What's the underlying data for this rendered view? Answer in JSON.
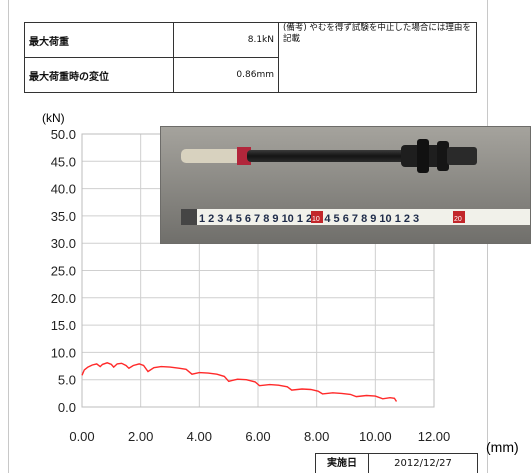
{
  "info": {
    "max_load_label": "最大荷重",
    "max_load_value": "8.1kN",
    "disp_label": "最大荷重時の変位",
    "disp_value": "0.86mm",
    "note": "(備考) やむを得ず試験を中止した場合には理由を記載"
  },
  "footer": {
    "date_label": "実施日",
    "date_value": "2012/12/27"
  },
  "photo": {
    "ruler_text": "1 2 3 4 5 6 7 8 9 10 1 2 3 4 5 6 7 8 9 10 1 2 3",
    "ruler_marks": [
      "10",
      "20"
    ]
  },
  "chart_data": {
    "type": "line",
    "ylabel": "(kN)",
    "xlabel": "(mm)",
    "xlim": [
      0,
      12
    ],
    "ylim": [
      0,
      50
    ],
    "x_ticks": [
      "0.00",
      "2.00",
      "4.00",
      "6.00",
      "8.00",
      "10.00",
      "12.00"
    ],
    "y_ticks": [
      "0.0",
      "5.0",
      "10.0",
      "15.0",
      "20.0",
      "25.0",
      "30.0",
      "35.0",
      "40.0",
      "45.0",
      "50.0"
    ],
    "grid": true,
    "series": [
      {
        "color": "#ff2a2a",
        "points": [
          [
            0.0,
            5.8
          ],
          [
            0.08,
            6.8
          ],
          [
            0.2,
            7.3
          ],
          [
            0.35,
            7.7
          ],
          [
            0.5,
            7.9
          ],
          [
            0.62,
            7.4
          ],
          [
            0.7,
            7.8
          ],
          [
            0.86,
            8.1
          ],
          [
            1.0,
            7.8
          ],
          [
            1.08,
            7.3
          ],
          [
            1.2,
            7.9
          ],
          [
            1.35,
            8.0
          ],
          [
            1.5,
            7.6
          ],
          [
            1.6,
            7.1
          ],
          [
            1.75,
            7.6
          ],
          [
            1.95,
            7.9
          ],
          [
            2.1,
            7.6
          ],
          [
            2.25,
            6.5
          ],
          [
            2.45,
            7.2
          ],
          [
            2.7,
            7.4
          ],
          [
            3.0,
            7.3
          ],
          [
            3.3,
            7.1
          ],
          [
            3.55,
            6.9
          ],
          [
            3.75,
            6.0
          ],
          [
            4.0,
            6.3
          ],
          [
            4.3,
            6.2
          ],
          [
            4.6,
            6.0
          ],
          [
            4.85,
            5.6
          ],
          [
            5.0,
            4.7
          ],
          [
            5.3,
            5.1
          ],
          [
            5.6,
            5.0
          ],
          [
            5.9,
            4.6
          ],
          [
            6.05,
            3.9
          ],
          [
            6.4,
            4.1
          ],
          [
            6.7,
            4.0
          ],
          [
            7.0,
            3.7
          ],
          [
            7.15,
            3.1
          ],
          [
            7.5,
            3.3
          ],
          [
            7.8,
            3.2
          ],
          [
            8.05,
            2.9
          ],
          [
            8.2,
            2.4
          ],
          [
            8.55,
            2.6
          ],
          [
            8.85,
            2.5
          ],
          [
            9.15,
            2.3
          ],
          [
            9.35,
            1.9
          ],
          [
            9.7,
            2.1
          ],
          [
            10.0,
            2.0
          ],
          [
            10.25,
            1.5
          ],
          [
            10.5,
            1.7
          ],
          [
            10.65,
            1.6
          ],
          [
            10.72,
            1.0
          ]
        ]
      }
    ]
  }
}
